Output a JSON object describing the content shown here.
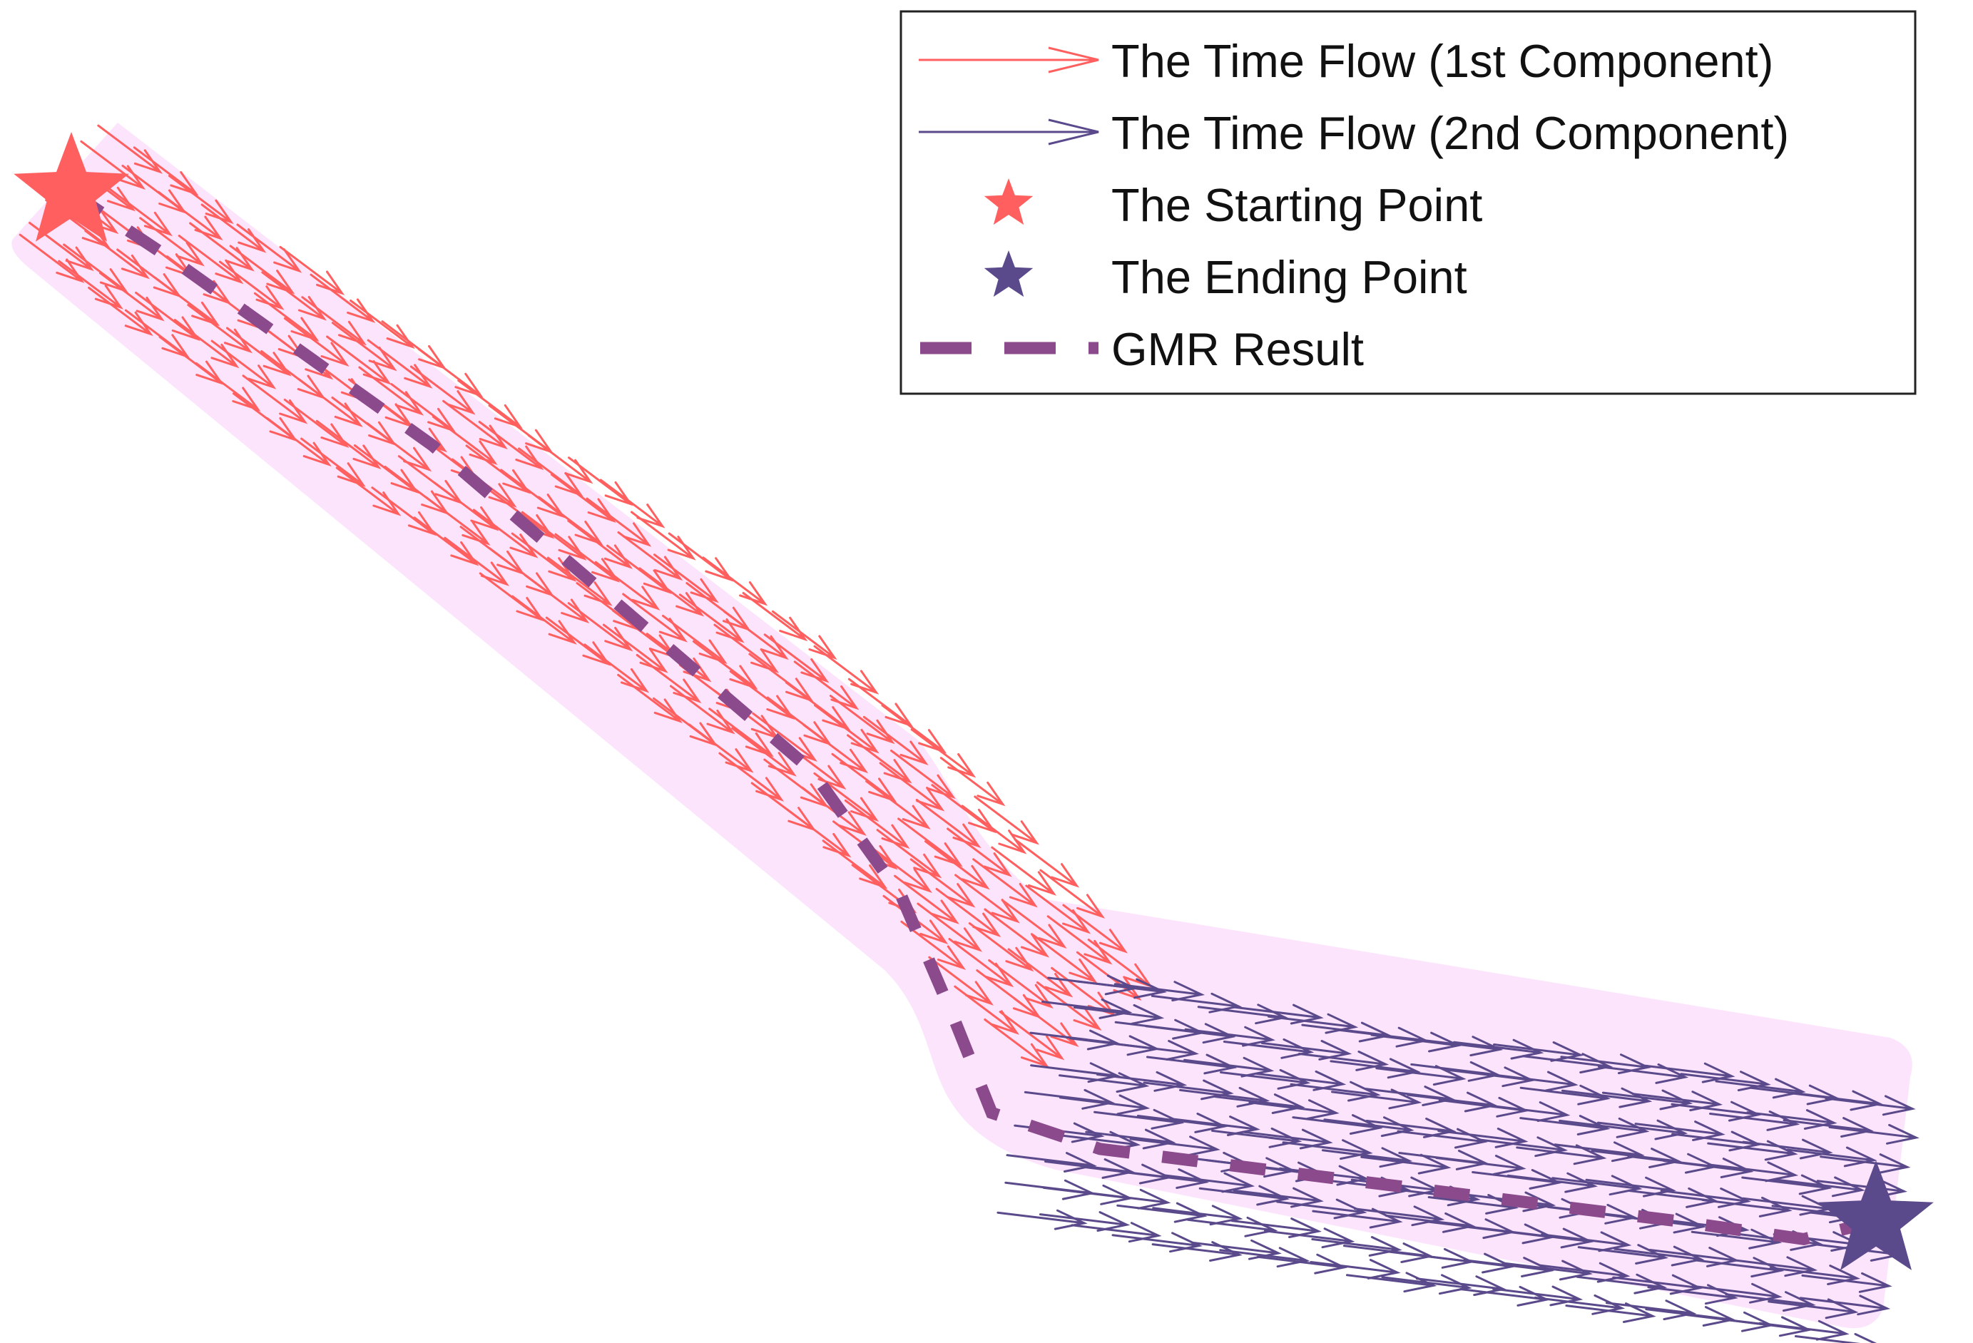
{
  "chart_data": {
    "type": "quiver",
    "title": "",
    "xlabel": "",
    "ylabel": "",
    "axes_visible": false,
    "grid": false,
    "legend_placement": "top-right",
    "legend": [
      {
        "label": "The Time Flow (1st Component)",
        "kind": "arrow",
        "color": "#FF5F5F"
      },
      {
        "label": "The Time Flow (2nd Component)",
        "kind": "arrow",
        "color": "#5B4A8B"
      },
      {
        "label": "The Starting Point",
        "kind": "star",
        "color": "#FF5F5F"
      },
      {
        "label": "The Ending Point",
        "kind": "star",
        "color": "#5B4A8B"
      },
      {
        "label": "GMR Result",
        "kind": "dashed-line",
        "color": "#8B4A8B"
      }
    ],
    "region_color": "#FCE4FC",
    "start_point": {
      "x": 0.0,
      "y": 0.0
    },
    "end_point": {
      "x": 1.0,
      "y": -0.57
    },
    "gmr_result": {
      "x": [
        0.0,
        0.06,
        0.13,
        0.2,
        0.27,
        0.34,
        0.41,
        0.46,
        0.49,
        0.51,
        0.57,
        0.65,
        0.73,
        0.81,
        0.89,
        0.96,
        1.0
      ],
      "y": [
        0.0,
        -0.04,
        -0.09,
        -0.14,
        -0.2,
        -0.26,
        -0.32,
        -0.39,
        -0.46,
        -0.51,
        -0.53,
        -0.54,
        -0.55,
        -0.56,
        -0.57,
        -0.58,
        -0.57
      ]
    },
    "series": [
      {
        "name": "The Time Flow (1st Component)",
        "direction": [
          0.8,
          -0.6
        ],
        "path_x": [
          0.0,
          0.2,
          0.4,
          0.5,
          0.56
        ],
        "path_y": [
          0.0,
          -0.14,
          -0.29,
          -0.38,
          -0.46
        ],
        "band_halfwidth": 0.045
      },
      {
        "name": "The Time Flow (2nd Component)",
        "direction": [
          0.99,
          -0.12
        ],
        "path_x": [
          0.54,
          0.7,
          0.85,
          1.0
        ],
        "path_y": [
          -0.5,
          -0.53,
          -0.55,
          -0.57
        ],
        "band_halfwidth": 0.075
      }
    ]
  }
}
